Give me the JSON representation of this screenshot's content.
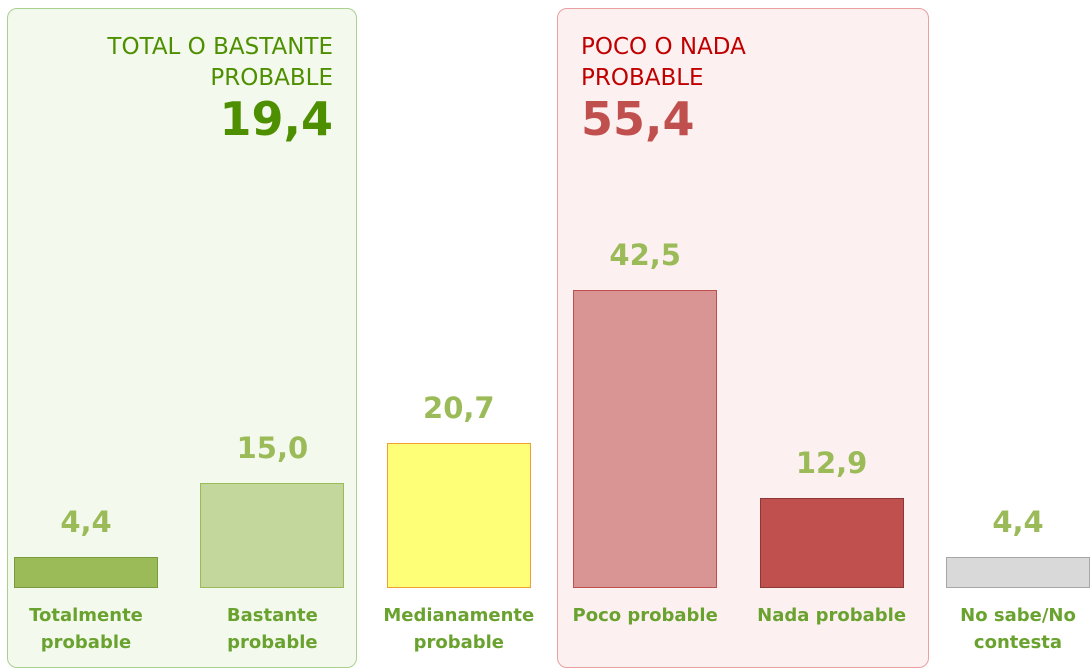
{
  "chart_data": {
    "type": "bar",
    "categories": [
      "Totalmente probable",
      "Bastante probable",
      "Medianamente probable",
      "Poco probable",
      "Nada probable",
      "No sabe/No contesta"
    ],
    "values": [
      4.4,
      15.0,
      20.7,
      42.5,
      12.9,
      4.4
    ],
    "value_labels": [
      "4,4",
      "15,0",
      "20,7",
      "42,5",
      "12,9",
      "4,4"
    ],
    "colors": [
      "#9bbb59",
      "#c3d69b",
      "#ffff77",
      "#d99594",
      "#c0504d",
      "#d9d9d9"
    ],
    "groups": [
      {
        "name": "TOTAL O BASTANTE PROBABLE",
        "value": 19.4,
        "value_label": "19,4"
      },
      {
        "name": "POCO O NADA PROBABLE",
        "value": 55.4,
        "value_label": "55,4"
      }
    ]
  }
}
